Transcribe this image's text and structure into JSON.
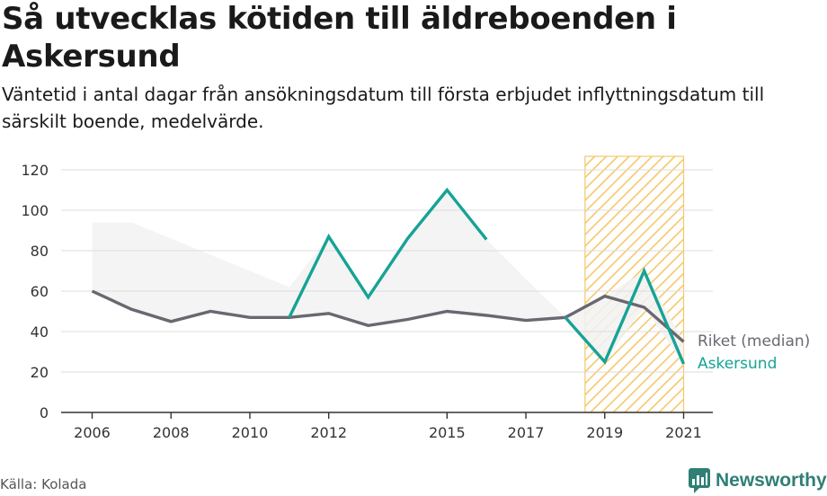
{
  "title": "Så utvecklas kötiden till äldreboenden i Askersund",
  "subtitle": "Väntetid i antal dagar från ansökningsdatum till första erbjudet inflyttningsdatum till särskilt boende, medelvärde.",
  "source": "Källa: Kolada",
  "brand": "Newsworthy",
  "colors": {
    "riket": "#6b6770",
    "askersund": "#16a396",
    "hatch": "#f5c86a",
    "range": "#f2f2f2",
    "grid": "#dddddd"
  },
  "chart_data": {
    "type": "line",
    "x": [
      2006,
      2007,
      2008,
      2009,
      2010,
      2011,
      2012,
      2013,
      2014,
      2015,
      2016,
      2017,
      2018,
      2019,
      2020,
      2021
    ],
    "x_ticks": [
      "2006",
      "2008",
      "2010",
      "2012",
      "2015",
      "2017",
      "2019",
      "2021"
    ],
    "y_ticks": [
      "0",
      "20",
      "40",
      "60",
      "80",
      "100",
      "120"
    ],
    "ylim": [
      0,
      120
    ],
    "xlim": [
      2005.3,
      2021.7
    ],
    "grid": true,
    "series": [
      {
        "name": "Riket (median)",
        "values": [
          60,
          51,
          45,
          50,
          47,
          47,
          49,
          43,
          46,
          50,
          48,
          45.5,
          47,
          57.5,
          52,
          35
        ]
      },
      {
        "name": "Askersund",
        "values": [
          null,
          null,
          null,
          null,
          null,
          47,
          87,
          57,
          86,
          110,
          85.5,
          null,
          47,
          25,
          70,
          24
        ]
      }
    ],
    "range_band": {
      "x": [
        2006,
        2007,
        2008,
        2009,
        2010,
        2011,
        2012,
        2013,
        2014,
        2015,
        2016,
        2017,
        2018,
        2019,
        2020,
        2021
      ],
      "upper": [
        94,
        94,
        86,
        78,
        70,
        62,
        87,
        57,
        86,
        110,
        85.5,
        66,
        47,
        57.5,
        70,
        35
      ],
      "lower": [
        60,
        51,
        45,
        50,
        47,
        47,
        49,
        43,
        46,
        50,
        48,
        45.5,
        47,
        25,
        52,
        24
      ]
    },
    "highlight_period": [
      2018.5,
      2021
    ]
  }
}
